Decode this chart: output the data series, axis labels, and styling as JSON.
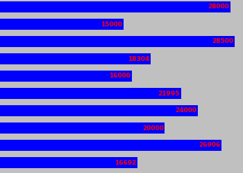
{
  "values": [
    28000,
    15000,
    28500,
    18304,
    16000,
    21995,
    24000,
    20000,
    26906,
    16692
  ],
  "bar_color": "#0000FF",
  "text_color": "#FF0000",
  "background_color": "#C0C0C0",
  "max_value": 29500,
  "font_size": 6.5,
  "fig_width": 3.5,
  "fig_height": 2.5,
  "dpi": 100
}
